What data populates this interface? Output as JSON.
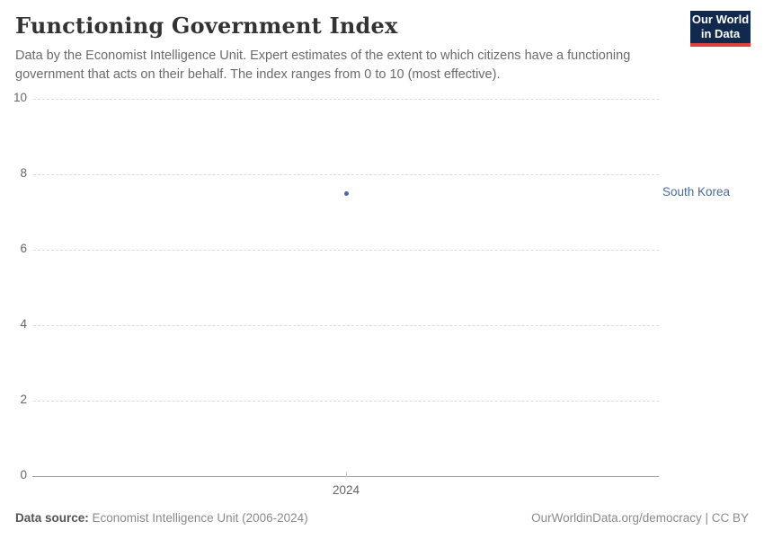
{
  "header": {
    "title": "Functioning Government Index",
    "subtitle": "Data by the Economist Intelligence Unit. Expert estimates of the extent to which citizens have a functioning government that acts on their behalf. The index ranges from 0 to 10 (most effective).",
    "logo": {
      "line1": "Our World",
      "line2": "in Data",
      "bg_color": "#12294e",
      "accent_color": "#e0423b"
    }
  },
  "chart_data": {
    "type": "scatter",
    "title": "Functioning Government Index",
    "x": [
      2024
    ],
    "x_tick_labels": [
      "2024"
    ],
    "series": [
      {
        "name": "South Korea",
        "values": [
          7.5
        ],
        "color": "#4c6a9c"
      }
    ],
    "y_ticks": [
      0,
      2,
      4,
      6,
      8,
      10
    ],
    "ylim": [
      0,
      10
    ],
    "grid": true,
    "legend_position": "right-of-point",
    "colors": {
      "grid": "#dcdcdc",
      "axis": "#9e9e9e",
      "tick_label": "#666666"
    }
  },
  "footer": {
    "source_label": "Data source:",
    "source_value": " Economist Intelligence Unit (2006-2024)",
    "credit": "OurWorldinData.org/democracy | CC BY"
  }
}
